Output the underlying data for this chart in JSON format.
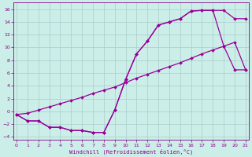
{
  "xlabel": "Windchill (Refroidissement éolien,°C)",
  "bg_color": "#cceee8",
  "grid_color": "#aacccc",
  "line_color": "#990099",
  "markersize": 2,
  "linewidth": 0.9,
  "line1_x": [
    0,
    1,
    2,
    3,
    4,
    5,
    6,
    7,
    8,
    9,
    10,
    11,
    12,
    13,
    14,
    15,
    16,
    17,
    18,
    19,
    20,
    21
  ],
  "line1_y": [
    -0.5,
    -1.5,
    -1.5,
    -2.5,
    -2.5,
    -3.0,
    -3.0,
    -3.3,
    -3.3,
    0.2,
    5.0,
    9.0,
    11.0,
    13.5,
    14.0,
    14.5,
    15.7,
    15.8,
    15.8,
    15.8,
    14.5,
    14.5
  ],
  "line2_x": [
    0,
    1,
    2,
    3,
    4,
    5,
    6,
    7,
    8,
    9,
    10,
    11,
    12,
    13,
    14,
    15,
    16,
    17,
    18,
    19,
    20,
    21
  ],
  "line2_y": [
    -0.5,
    -1.5,
    -1.5,
    -2.5,
    -2.5,
    -3.0,
    -3.0,
    -3.3,
    -3.3,
    0.2,
    5.0,
    9.0,
    11.0,
    13.5,
    14.0,
    14.5,
    15.7,
    15.8,
    15.8,
    10.2,
    6.5,
    6.5
  ],
  "line3_x": [
    0,
    1,
    2,
    3,
    4,
    5,
    6,
    7,
    8,
    9,
    10,
    11,
    12,
    13,
    14,
    15,
    16,
    17,
    18,
    19,
    20,
    21
  ],
  "line3_y": [
    -0.5,
    -0.3,
    0.2,
    0.7,
    1.2,
    1.7,
    2.2,
    2.8,
    3.3,
    3.8,
    4.5,
    5.2,
    5.8,
    6.4,
    7.0,
    7.6,
    8.3,
    9.0,
    9.6,
    10.2,
    10.8,
    6.5
  ],
  "xlim": [
    0,
    21
  ],
  "ylim": [
    -4.5,
    17
  ],
  "xticks": [
    0,
    1,
    2,
    3,
    4,
    5,
    6,
    7,
    8,
    9,
    10,
    11,
    12,
    13,
    14,
    15,
    16,
    17,
    18,
    19,
    20,
    21
  ],
  "yticks": [
    -4,
    -2,
    0,
    2,
    4,
    6,
    8,
    10,
    12,
    14,
    16
  ]
}
